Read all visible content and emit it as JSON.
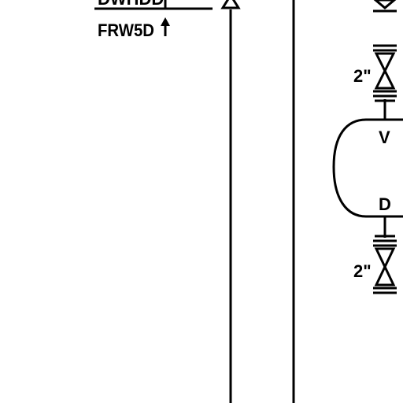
{
  "labels": {
    "top_cut_tag": "DWHDD",
    "line_tag": "FRW5D",
    "upper_valve_size": "2\"",
    "lower_valve_size": "2\"",
    "vent_marker": "V",
    "drain_marker": "D"
  }
}
